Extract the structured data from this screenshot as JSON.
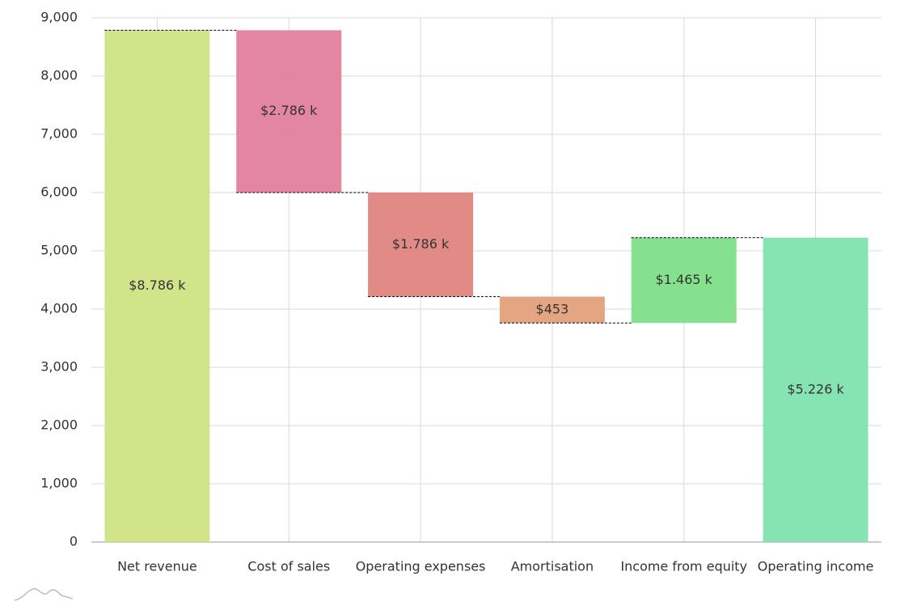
{
  "chart_data": {
    "type": "waterfall",
    "categories": [
      "Net revenue",
      "Cost of sales",
      "Operating expenses",
      "Amortisation",
      "Income from equity",
      "Operating income"
    ],
    "values": [
      8786,
      -2786,
      -1786,
      -453,
      1465,
      5226
    ],
    "value_labels": [
      "$8.786 k",
      "$2.786 k",
      "$1.786 k",
      "$453",
      "$1.465 k",
      "$5.226 k"
    ],
    "measure": [
      "absolute",
      "relative",
      "relative",
      "relative",
      "relative",
      "total"
    ],
    "colors": [
      "#cde384",
      "#e0809c",
      "#e0847e",
      "#e3a07c",
      "#80df88",
      "#80e2ae"
    ],
    "ylim": [
      0,
      9000
    ],
    "yticks": [
      0,
      {
        "value": 1000,
        "label": "1,000"
      },
      {
        "value": 2000,
        "label": "2,000"
      },
      {
        "value": 3000,
        "label": "3,000"
      },
      {
        "value": 4000,
        "label": "4,000"
      },
      {
        "value": 5000,
        "label": "5,000"
      },
      {
        "value": 6000,
        "label": "6,000"
      },
      {
        "value": 7000,
        "label": "7,000"
      },
      {
        "value": 8000,
        "label": "8,000"
      },
      {
        "value": 9000,
        "label": "9,000"
      }
    ],
    "grid": true
  }
}
